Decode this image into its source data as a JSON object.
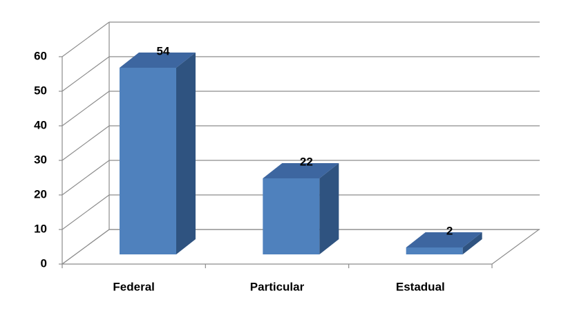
{
  "chart_data": {
    "type": "bar3d",
    "categories": [
      "Federal",
      "Particular",
      "Estadual"
    ],
    "values": [
      54,
      22,
      2
    ],
    "color": "#4f81bd",
    "ylim": [
      0,
      60
    ],
    "yticks": [
      0,
      10,
      20,
      30,
      40,
      50,
      60
    ],
    "grid": true
  }
}
